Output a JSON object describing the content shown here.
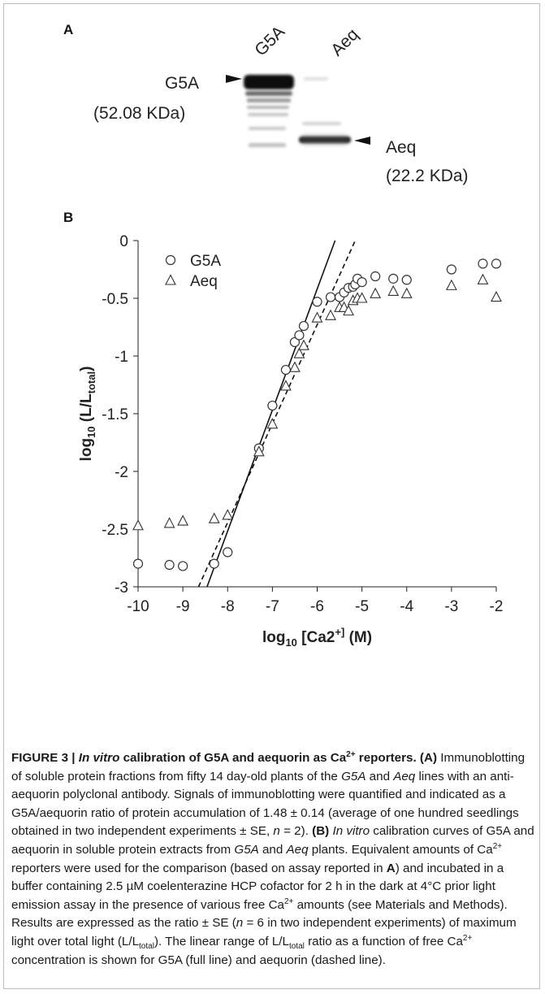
{
  "panelA": {
    "label": "A",
    "lane1": "G5A",
    "lane2": "Aeq",
    "band1_name": "G5A",
    "band1_size": "(52.08 KDa)",
    "band2_name": "Aeq",
    "band2_size": "(22.2 KDa)"
  },
  "chart_data": {
    "type": "scatter",
    "panel_label": "B",
    "xlabel": "log10 [Ca2+] (M)",
    "ylabel": "log10 (L/Ltotal)",
    "xlim": [
      -10,
      -2
    ],
    "ylim": [
      -3,
      0
    ],
    "xticks": [
      -10,
      -9,
      -8,
      -7,
      -6,
      -5,
      -4,
      -3,
      -2
    ],
    "yticks": [
      0,
      -0.5,
      -1,
      -1.5,
      -2,
      -2.5,
      -3
    ],
    "xtick_labels": [
      "-10",
      "-9",
      "-8",
      "-7",
      "-6",
      "-5",
      "-4",
      "-3",
      "-2"
    ],
    "ytick_labels": [
      "0",
      "-0.5",
      "-1",
      "-1.5",
      "-2",
      "-2.5",
      "-3"
    ],
    "grid": false,
    "legend_position": "top-left",
    "series": [
      {
        "name": "G5A",
        "marker": "circle",
        "x": [
          -10,
          -9.3,
          -9,
          -8.3,
          -8,
          -7.3,
          -7,
          -6.7,
          -6.5,
          -6.4,
          -6.3,
          -6,
          -5.7,
          -5.5,
          -5.4,
          -5.3,
          -5.2,
          -5.15,
          -5.1,
          -5,
          -4.7,
          -4.3,
          -4,
          -3,
          -2.3,
          -2
        ],
        "y": [
          -2.8,
          -2.81,
          -2.82,
          -2.8,
          -2.7,
          -1.8,
          -1.43,
          -1.12,
          -0.88,
          -0.82,
          -0.74,
          -0.53,
          -0.49,
          -0.49,
          -0.45,
          -0.41,
          -0.4,
          -0.38,
          -0.33,
          -0.36,
          -0.31,
          -0.33,
          -0.34,
          -0.25,
          -0.2,
          -0.2
        ]
      },
      {
        "name": "Aeq",
        "marker": "triangle",
        "x": [
          -10,
          -9.3,
          -9,
          -8.3,
          -8,
          -7.3,
          -7,
          -6.7,
          -6.5,
          -6.4,
          -6.3,
          -6,
          -5.7,
          -5.5,
          -5.4,
          -5.3,
          -5.2,
          -5.1,
          -5,
          -4.7,
          -4.3,
          -4,
          -3,
          -2.3,
          -2
        ],
        "y": [
          -2.47,
          -2.45,
          -2.43,
          -2.41,
          -2.38,
          -1.83,
          -1.59,
          -1.26,
          -1.1,
          -0.98,
          -0.91,
          -0.67,
          -0.65,
          -0.58,
          -0.58,
          -0.61,
          -0.52,
          -0.5,
          -0.5,
          -0.46,
          -0.44,
          -0.46,
          -0.39,
          -0.34,
          -0.49
        ]
      }
    ],
    "fit_lines": [
      {
        "series": "G5A",
        "style": "solid",
        "x": [
          -8.46,
          -5.6
        ],
        "y": [
          -3,
          0
        ]
      },
      {
        "series": "Aeq",
        "style": "dashed",
        "x": [
          -8.65,
          -5.15
        ],
        "y": [
          -3,
          0
        ]
      }
    ]
  },
  "caption": {
    "title_pre": "FIGURE 3 | ",
    "title_italic": "In vitro",
    "title_post": " calibration of G5A and aequorin as Ca",
    "title_sup": "2+",
    "title_end": " reporters.",
    "label_A": "(A)",
    "text_A1": " Immunoblotting of soluble protein fractions from fifty 14 day-old plants of the ",
    "g5a": "G5A",
    "and1": " and ",
    "aeq": "Aeq",
    "text_A2": " lines with an anti-aequorin polyclonal antibody. Signals of immunoblotting were quantified and indicated as a G5A/aequorin ratio of protein accumulation of 1.48 ± 0.14 (average of one hundred seedlings obtained in two independent experiments ± SE, ",
    "n_A": "n",
    "text_A3": " = 2). ",
    "label_B": "(B)",
    "invitro2": "In vitro",
    "text_B1": " calibration curves of G5A and aequorin in soluble protein extracts from ",
    "g5a2": "G5A",
    "and2": " and ",
    "aeq2": "Aeq",
    "text_B2": " plants. Equivalent amounts of Ca",
    "sup2": "2+",
    "text_B3": " reporters were used for the comparison (based on assay reported in ",
    "refA": "A",
    "text_B4": ") and incubated in a buffer containing 2.5 µM coelenterazine HCP cofactor for 2 h in the dark at 4°C prior light emission assay in the presence of various free Ca",
    "sup3": "2+",
    "text_B5": " amounts (see Materials and Methods). Results are expressed as the ratio ± SE (",
    "n_B": "n",
    "text_B6": " = 6 in two independent experiments) of maximum light over total light (L/L",
    "sub1": "total",
    "text_B7": "). The linear range of L/L",
    "sub2": "total",
    "text_B8": " ratio as a function of free Ca",
    "sup4": "2+",
    "text_B9": " concentration is shown for G5A (full line) and aequorin (dashed line)."
  }
}
